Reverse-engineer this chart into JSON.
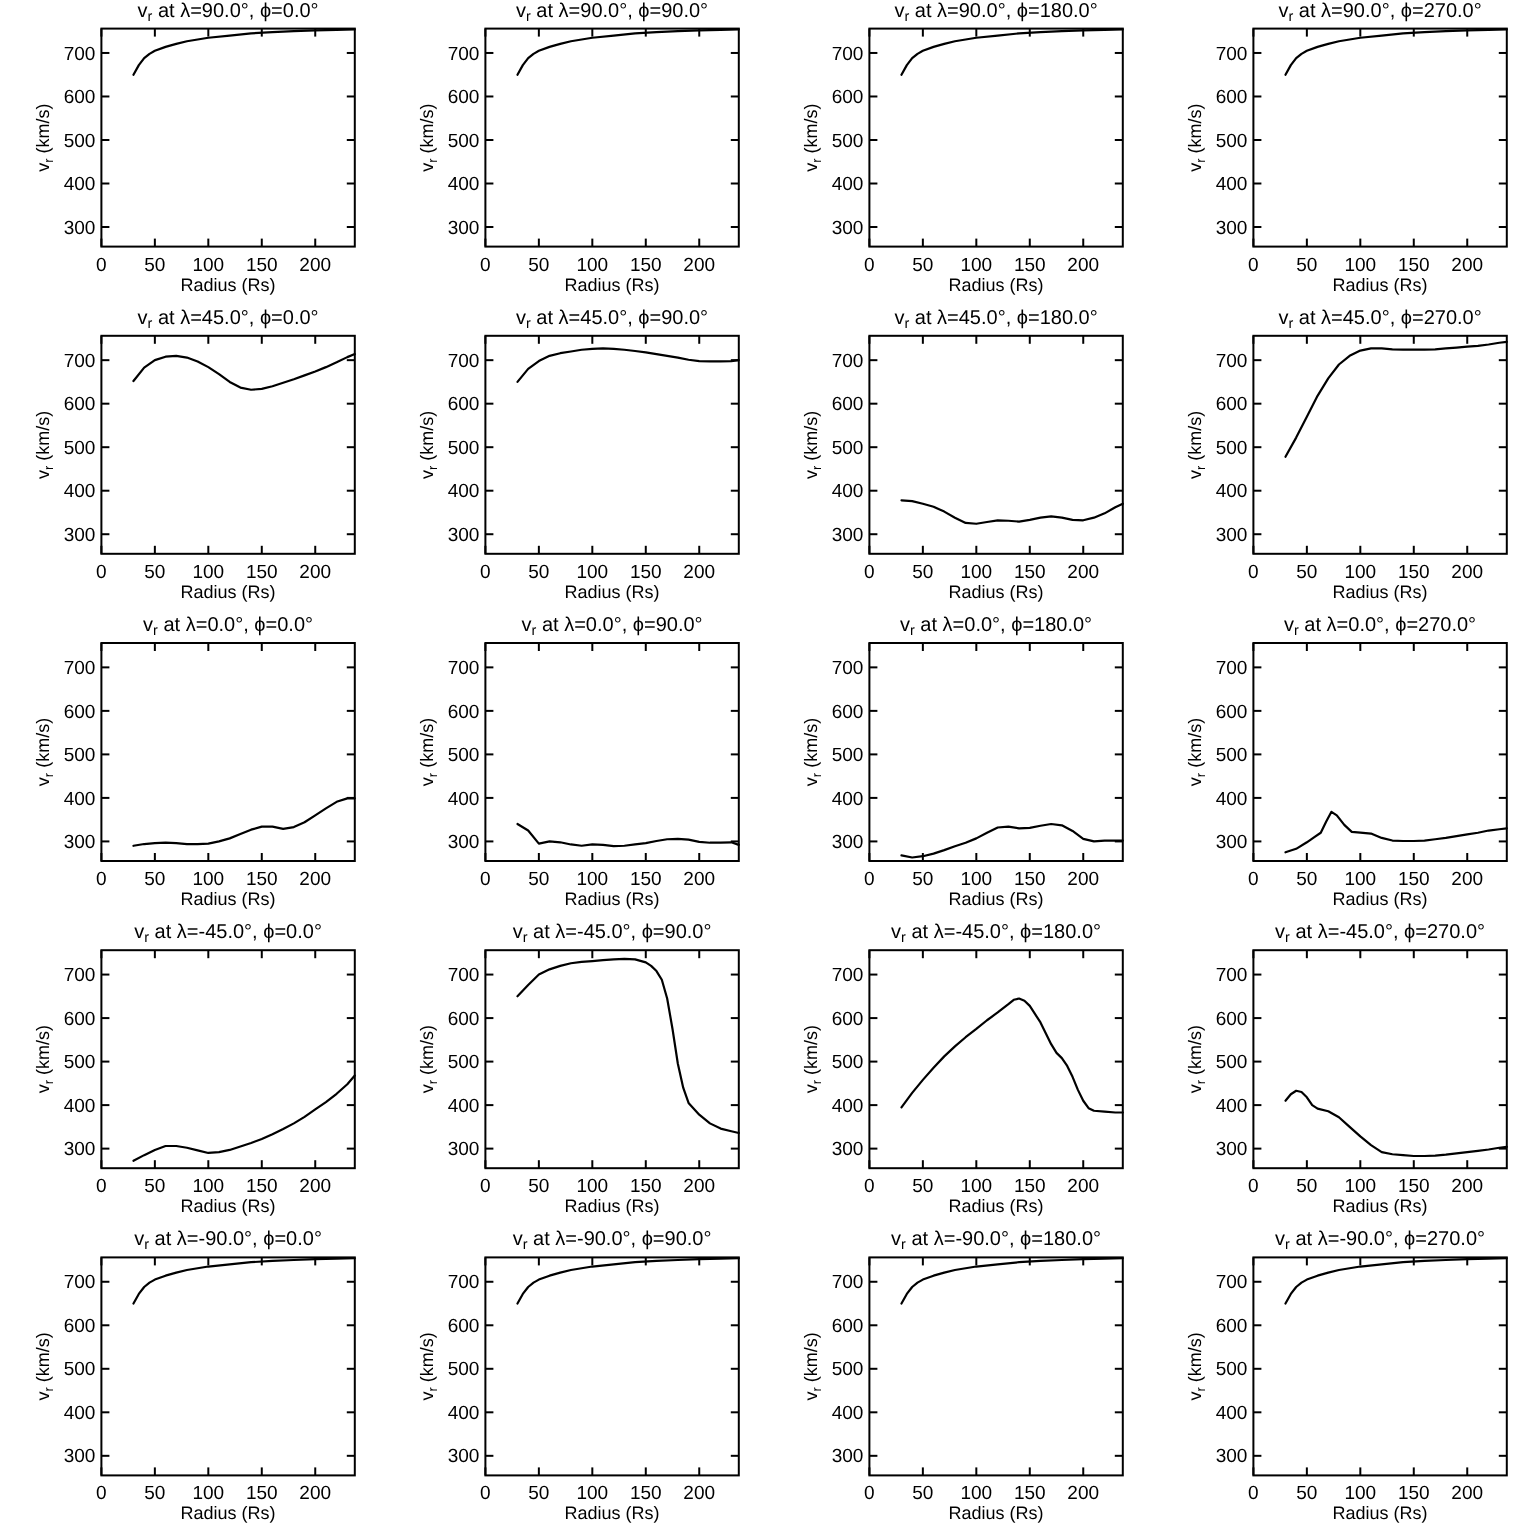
{
  "chart_data": [
    {
      "type": "line",
      "title": "v$_{r}$ at λ=90.0°, ϕ=0.0°",
      "xlabel": "Radius (Rs)",
      "ylabel": "v$_{r}$ (km/s)",
      "x": [
        30,
        35,
        40,
        45,
        50,
        60,
        70,
        80,
        100,
        120,
        140,
        160,
        180,
        200,
        220,
        237
      ],
      "values": [
        650,
        672,
        688,
        698,
        705,
        714,
        721,
        727,
        735,
        740,
        745,
        748,
        750,
        752,
        753,
        754
      ],
      "color": "#000000",
      "xlim": [
        0,
        237
      ],
      "ylim": [
        255,
        756
      ],
      "xticks": [
        0,
        50,
        100,
        150,
        200
      ],
      "yticks": [
        300,
        400,
        500,
        600,
        700
      ]
    },
    {
      "type": "line",
      "title": "v$_{r}$ at λ=90.0°, ϕ=90.0°",
      "xlabel": "Radius (Rs)",
      "ylabel": "v$_{r}$ (km/s)",
      "x": [
        30,
        35,
        40,
        45,
        50,
        60,
        70,
        80,
        100,
        120,
        140,
        160,
        180,
        200,
        220,
        237
      ],
      "values": [
        650,
        672,
        688,
        698,
        705,
        714,
        721,
        727,
        735,
        740,
        745,
        748,
        750,
        752,
        753,
        754
      ],
      "color": "#000000",
      "xlim": [
        0,
        237
      ],
      "ylim": [
        255,
        756
      ],
      "xticks": [
        0,
        50,
        100,
        150,
        200
      ],
      "yticks": [
        300,
        400,
        500,
        600,
        700
      ]
    },
    {
      "type": "line",
      "title": "v$_{r}$ at λ=90.0°, ϕ=180.0°",
      "xlabel": "Radius (Rs)",
      "ylabel": "v$_{r}$ (km/s)",
      "x": [
        30,
        35,
        40,
        45,
        50,
        60,
        70,
        80,
        100,
        120,
        140,
        160,
        180,
        200,
        220,
        237
      ],
      "values": [
        650,
        672,
        688,
        698,
        705,
        714,
        721,
        727,
        735,
        740,
        745,
        748,
        750,
        752,
        753,
        754
      ],
      "color": "#000000",
      "xlim": [
        0,
        237
      ],
      "ylim": [
        255,
        756
      ],
      "xticks": [
        0,
        50,
        100,
        150,
        200
      ],
      "yticks": [
        300,
        400,
        500,
        600,
        700
      ]
    },
    {
      "type": "line",
      "title": "v$_{r}$ at λ=90.0°, ϕ=270.0°",
      "xlabel": "Radius (Rs)",
      "ylabel": "v$_{r}$ (km/s)",
      "x": [
        30,
        35,
        40,
        45,
        50,
        60,
        70,
        80,
        100,
        120,
        140,
        160,
        180,
        200,
        220,
        237
      ],
      "values": [
        650,
        672,
        688,
        698,
        705,
        714,
        721,
        727,
        735,
        740,
        745,
        748,
        750,
        752,
        753,
        754
      ],
      "color": "#000000",
      "xlim": [
        0,
        237
      ],
      "ylim": [
        255,
        756
      ],
      "xticks": [
        0,
        50,
        100,
        150,
        200
      ],
      "yticks": [
        300,
        400,
        500,
        600,
        700
      ]
    },
    {
      "type": "line",
      "title": "v$_{r}$ at λ=45.0°, ϕ=0.0°",
      "xlabel": "Radius (Rs)",
      "ylabel": "v$_{r}$ (km/s)",
      "x": [
        30,
        40,
        50,
        60,
        70,
        80,
        90,
        100,
        110,
        120,
        130,
        140,
        150,
        160,
        170,
        180,
        190,
        200,
        210,
        220,
        230,
        237
      ],
      "values": [
        652,
        683,
        700,
        708,
        710,
        706,
        697,
        684,
        668,
        650,
        637,
        632,
        634,
        640,
        648,
        656,
        665,
        674,
        684,
        695,
        707,
        714
      ],
      "color": "#000000",
      "xlim": [
        0,
        237
      ],
      "ylim": [
        255,
        756
      ],
      "xticks": [
        0,
        50,
        100,
        150,
        200
      ],
      "yticks": [
        300,
        400,
        500,
        600,
        700
      ]
    },
    {
      "type": "line",
      "title": "v$_{r}$ at λ=45.0°, ϕ=90.0°",
      "xlabel": "Radius (Rs)",
      "ylabel": "v$_{r}$ (km/s)",
      "x": [
        30,
        40,
        50,
        60,
        70,
        80,
        90,
        100,
        110,
        120,
        130,
        140,
        150,
        160,
        170,
        180,
        190,
        200,
        210,
        220,
        230,
        237
      ],
      "values": [
        650,
        680,
        698,
        710,
        716,
        720,
        724,
        726,
        727,
        726,
        724,
        721,
        718,
        714,
        710,
        706,
        701,
        698,
        697,
        697,
        698,
        700
      ],
      "color": "#000000",
      "xlim": [
        0,
        237
      ],
      "ylim": [
        255,
        756
      ],
      "xticks": [
        0,
        50,
        100,
        150,
        200
      ],
      "yticks": [
        300,
        400,
        500,
        600,
        700
      ]
    },
    {
      "type": "line",
      "title": "v$_{r}$ at λ=45.0°, ϕ=180.0°",
      "xlabel": "Radius (Rs)",
      "ylabel": "v$_{r}$ (km/s)",
      "x": [
        30,
        40,
        50,
        60,
        70,
        80,
        90,
        100,
        110,
        120,
        130,
        140,
        150,
        160,
        170,
        180,
        190,
        200,
        210,
        220,
        230,
        237
      ],
      "values": [
        378,
        376,
        370,
        363,
        352,
        338,
        326,
        324,
        328,
        332,
        331,
        329,
        333,
        338,
        341,
        338,
        333,
        332,
        338,
        348,
        362,
        370
      ],
      "color": "#000000",
      "xlim": [
        0,
        237
      ],
      "ylim": [
        255,
        756
      ],
      "xticks": [
        0,
        50,
        100,
        150,
        200
      ],
      "yticks": [
        300,
        400,
        500,
        600,
        700
      ]
    },
    {
      "type": "line",
      "title": "v$_{r}$ at λ=45.0°, ϕ=270.0°",
      "xlabel": "Radius (Rs)",
      "ylabel": "v$_{r}$ (km/s)",
      "x": [
        30,
        40,
        50,
        60,
        70,
        80,
        90,
        100,
        110,
        120,
        130,
        140,
        150,
        160,
        170,
        180,
        190,
        200,
        210,
        220,
        230,
        237
      ],
      "values": [
        478,
        522,
        570,
        618,
        658,
        690,
        710,
        722,
        727,
        727,
        725,
        724,
        724,
        724,
        725,
        727,
        729,
        731,
        733,
        736,
        740,
        742
      ],
      "color": "#000000",
      "xlim": [
        0,
        237
      ],
      "ylim": [
        255,
        756
      ],
      "xticks": [
        0,
        50,
        100,
        150,
        200
      ],
      "yticks": [
        300,
        400,
        500,
        600,
        700
      ]
    },
    {
      "type": "line",
      "title": "v$_{r}$ at λ=0.0°, ϕ=0.0°",
      "xlabel": "Radius (Rs)",
      "ylabel": "v$_{r}$ (km/s)",
      "x": [
        30,
        40,
        50,
        60,
        70,
        80,
        90,
        100,
        110,
        120,
        130,
        140,
        150,
        160,
        170,
        180,
        190,
        200,
        210,
        220,
        230,
        237
      ],
      "values": [
        290,
        294,
        296,
        297,
        296,
        294,
        294,
        295,
        300,
        307,
        317,
        327,
        334,
        334,
        329,
        333,
        344,
        360,
        376,
        391,
        399,
        399
      ],
      "color": "#000000",
      "xlim": [
        0,
        237
      ],
      "ylim": [
        255,
        756
      ],
      "xticks": [
        0,
        50,
        100,
        150,
        200
      ],
      "yticks": [
        300,
        400,
        500,
        600,
        700
      ]
    },
    {
      "type": "line",
      "title": "v$_{r}$ at λ=0.0°, ϕ=90.0°",
      "xlabel": "Radius (Rs)",
      "ylabel": "v$_{r}$ (km/s)",
      "x": [
        30,
        40,
        50,
        60,
        70,
        80,
        90,
        100,
        110,
        120,
        130,
        140,
        150,
        160,
        170,
        180,
        190,
        200,
        210,
        220,
        230,
        237
      ],
      "values": [
        340,
        325,
        295,
        300,
        298,
        293,
        290,
        293,
        292,
        289,
        290,
        293,
        296,
        301,
        305,
        306,
        304,
        299,
        297,
        297,
        298,
        292
      ],
      "color": "#000000",
      "xlim": [
        0,
        237
      ],
      "ylim": [
        255,
        756
      ],
      "xticks": [
        0,
        50,
        100,
        150,
        200
      ],
      "yticks": [
        300,
        400,
        500,
        600,
        700
      ]
    },
    {
      "type": "line",
      "title": "v$_{r}$ at λ=0.0°, ϕ=180.0°",
      "xlabel": "Radius (Rs)",
      "ylabel": "v$_{r}$ (km/s)",
      "x": [
        30,
        40,
        50,
        60,
        70,
        80,
        90,
        100,
        110,
        120,
        130,
        140,
        150,
        160,
        170,
        180,
        190,
        200,
        210,
        220,
        230,
        237
      ],
      "values": [
        268,
        263,
        266,
        272,
        280,
        289,
        297,
        307,
        320,
        332,
        334,
        330,
        331,
        336,
        340,
        337,
        324,
        306,
        300,
        302,
        302,
        302
      ],
      "color": "#000000",
      "xlim": [
        0,
        237
      ],
      "ylim": [
        255,
        756
      ],
      "xticks": [
        0,
        50,
        100,
        150,
        200
      ],
      "yticks": [
        300,
        400,
        500,
        600,
        700
      ]
    },
    {
      "type": "line",
      "title": "v$_{r}$ at λ=0.0°, ϕ=270.0°",
      "xlabel": "Radius (Rs)",
      "ylabel": "v$_{r}$ (km/s)",
      "x": [
        30,
        40,
        50,
        57,
        63,
        68,
        73,
        78,
        85,
        92,
        100,
        110,
        120,
        130,
        140,
        150,
        160,
        170,
        180,
        190,
        200,
        210,
        220,
        230,
        237
      ],
      "values": [
        275,
        283,
        298,
        310,
        320,
        345,
        368,
        360,
        338,
        322,
        320,
        318,
        308,
        302,
        301,
        301,
        302,
        305,
        308,
        312,
        316,
        320,
        325,
        328,
        330
      ],
      "color": "#000000",
      "xlim": [
        0,
        237
      ],
      "ylim": [
        255,
        756
      ],
      "xticks": [
        0,
        50,
        100,
        150,
        200
      ],
      "yticks": [
        300,
        400,
        500,
        600,
        700
      ]
    },
    {
      "type": "line",
      "title": "v$_{r}$ at λ=-45.0°, ϕ=0.0°",
      "xlabel": "Radius (Rs)",
      "ylabel": "v$_{r}$ (km/s)",
      "x": [
        30,
        40,
        50,
        60,
        70,
        80,
        90,
        100,
        110,
        120,
        130,
        140,
        150,
        160,
        170,
        180,
        190,
        200,
        210,
        220,
        230,
        237
      ],
      "values": [
        272,
        285,
        297,
        306,
        306,
        302,
        296,
        290,
        292,
        297,
        305,
        313,
        322,
        333,
        345,
        358,
        373,
        390,
        407,
        426,
        448,
        468
      ],
      "color": "#000000",
      "xlim": [
        0,
        237
      ],
      "ylim": [
        255,
        756
      ],
      "xticks": [
        0,
        50,
        100,
        150,
        200
      ],
      "yticks": [
        300,
        400,
        500,
        600,
        700
      ]
    },
    {
      "type": "line",
      "title": "v$_{r}$ at λ=-45.0°, ϕ=90.0°",
      "xlabel": "Radius (Rs)",
      "ylabel": "v$_{r}$ (km/s)",
      "x": [
        30,
        40,
        50,
        60,
        70,
        80,
        90,
        100,
        110,
        120,
        130,
        140,
        150,
        155,
        160,
        165,
        170,
        175,
        180,
        185,
        190,
        200,
        210,
        220,
        230,
        237
      ],
      "values": [
        650,
        676,
        700,
        712,
        720,
        726,
        729,
        731,
        733,
        735,
        736,
        735,
        728,
        720,
        708,
        688,
        645,
        575,
        495,
        440,
        405,
        378,
        358,
        346,
        340,
        336
      ],
      "color": "#000000",
      "xlim": [
        0,
        237
      ],
      "ylim": [
        255,
        756
      ],
      "xticks": [
        0,
        50,
        100,
        150,
        200
      ],
      "yticks": [
        300,
        400,
        500,
        600,
        700
      ]
    },
    {
      "type": "line",
      "title": "v$_{r}$ at λ=-45.0°, ϕ=180.0°",
      "xlabel": "Radius (Rs)",
      "ylabel": "v$_{r}$ (km/s)",
      "x": [
        30,
        40,
        50,
        60,
        70,
        80,
        90,
        100,
        110,
        120,
        130,
        135,
        140,
        145,
        150,
        160,
        170,
        175,
        180,
        185,
        190,
        195,
        200,
        205,
        210,
        220,
        230,
        237
      ],
      "values": [
        395,
        428,
        458,
        486,
        512,
        535,
        556,
        575,
        595,
        613,
        632,
        642,
        645,
        640,
        628,
        590,
        540,
        520,
        508,
        490,
        465,
        435,
        410,
        393,
        387,
        385,
        383,
        383
      ],
      "color": "#000000",
      "xlim": [
        0,
        237
      ],
      "ylim": [
        255,
        756
      ],
      "xticks": [
        0,
        50,
        100,
        150,
        200
      ],
      "yticks": [
        300,
        400,
        500,
        600,
        700
      ]
    },
    {
      "type": "line",
      "title": "v$_{r}$ at λ=-45.0°, ϕ=270.0°",
      "xlabel": "Radius (Rs)",
      "ylabel": "v$_{r}$ (km/s)",
      "x": [
        30,
        35,
        40,
        45,
        50,
        55,
        60,
        70,
        80,
        90,
        100,
        110,
        120,
        130,
        140,
        150,
        160,
        170,
        180,
        190,
        200,
        210,
        220,
        230,
        237
      ],
      "values": [
        410,
        425,
        433,
        430,
        418,
        400,
        392,
        386,
        372,
        350,
        328,
        308,
        292,
        287,
        285,
        283,
        283,
        284,
        286,
        289,
        292,
        295,
        298,
        302,
        304
      ],
      "color": "#000000",
      "xlim": [
        0,
        237
      ],
      "ylim": [
        255,
        756
      ],
      "xticks": [
        0,
        50,
        100,
        150,
        200
      ],
      "yticks": [
        300,
        400,
        500,
        600,
        700
      ]
    },
    {
      "type": "line",
      "title": "v$_{r}$ at λ=-90.0°, ϕ=0.0°",
      "xlabel": "Radius (Rs)",
      "ylabel": "v$_{r}$ (km/s)",
      "x": [
        30,
        35,
        40,
        45,
        50,
        60,
        70,
        80,
        100,
        120,
        140,
        160,
        180,
        200,
        220,
        237
      ],
      "values": [
        650,
        672,
        688,
        698,
        705,
        714,
        721,
        727,
        735,
        740,
        745,
        748,
        750,
        752,
        753,
        754
      ],
      "color": "#000000",
      "xlim": [
        0,
        237
      ],
      "ylim": [
        255,
        756
      ],
      "xticks": [
        0,
        50,
        100,
        150,
        200
      ],
      "yticks": [
        300,
        400,
        500,
        600,
        700
      ]
    },
    {
      "type": "line",
      "title": "v$_{r}$ at λ=-90.0°, ϕ=90.0°",
      "xlabel": "Radius (Rs)",
      "ylabel": "v$_{r}$ (km/s)",
      "x": [
        30,
        35,
        40,
        45,
        50,
        60,
        70,
        80,
        100,
        120,
        140,
        160,
        180,
        200,
        220,
        237
      ],
      "values": [
        650,
        672,
        688,
        698,
        705,
        714,
        721,
        727,
        735,
        740,
        745,
        748,
        750,
        752,
        753,
        754
      ],
      "color": "#000000",
      "xlim": [
        0,
        237
      ],
      "ylim": [
        255,
        756
      ],
      "xticks": [
        0,
        50,
        100,
        150,
        200
      ],
      "yticks": [
        300,
        400,
        500,
        600,
        700
      ]
    },
    {
      "type": "line",
      "title": "v$_{r}$ at λ=-90.0°, ϕ=180.0°",
      "xlabel": "Radius (Rs)",
      "ylabel": "v$_{r}$ (km/s)",
      "x": [
        30,
        35,
        40,
        45,
        50,
        60,
        70,
        80,
        100,
        120,
        140,
        160,
        180,
        200,
        220,
        237
      ],
      "values": [
        650,
        672,
        688,
        698,
        705,
        714,
        721,
        727,
        735,
        740,
        745,
        748,
        750,
        752,
        753,
        754
      ],
      "color": "#000000",
      "xlim": [
        0,
        237
      ],
      "ylim": [
        255,
        756
      ],
      "xticks": [
        0,
        50,
        100,
        150,
        200
      ],
      "yticks": [
        300,
        400,
        500,
        600,
        700
      ]
    },
    {
      "type": "line",
      "title": "v$_{r}$ at λ=-90.0°, ϕ=270.0°",
      "xlabel": "Radius (Rs)",
      "ylabel": "v$_{r}$ (km/s)",
      "x": [
        30,
        35,
        40,
        45,
        50,
        60,
        70,
        80,
        100,
        120,
        140,
        160,
        180,
        200,
        220,
        237
      ],
      "values": [
        650,
        672,
        688,
        698,
        705,
        714,
        721,
        727,
        735,
        740,
        745,
        748,
        750,
        752,
        753,
        754
      ],
      "color": "#000000",
      "xlim": [
        0,
        237
      ],
      "ylim": [
        255,
        756
      ],
      "xticks": [
        0,
        50,
        100,
        150,
        200
      ],
      "yticks": [
        300,
        400,
        500,
        600,
        700
      ]
    }
  ]
}
